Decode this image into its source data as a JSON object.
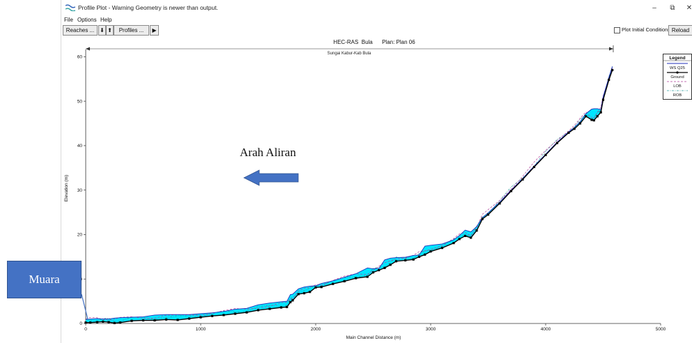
{
  "window": {
    "title": "Profile Plot - Warning Geometry is newer than output.",
    "minimize": "–",
    "maximize": "⧉",
    "close": "✕"
  },
  "menu": [
    "File",
    "Options",
    "Help"
  ],
  "toolbar": {
    "reaches": "Reaches ...",
    "down_arrow": "⬇",
    "up_arrow": "⬆",
    "profiles": "Profiles ...",
    "play": "▶",
    "plot_initial_conditions": "Plot Initial Conditions",
    "plot_initial_conditions_checked": false,
    "reload_data": "Reload Da"
  },
  "overlays": {
    "flow_direction": "Arah Aliran",
    "muara": "Muara"
  },
  "colors": {
    "water_fill": "#00e5ff",
    "ws_line": "#1f2fb8",
    "ground": "#000000",
    "lob": "#b0409a",
    "rob": "#2a9f9f",
    "callout": "#4472c4",
    "arrow": "#4472c4"
  },
  "chart_data": {
    "type": "line",
    "title": "HEC-RAS  Bula      Plan: Plan 06",
    "reach_label": "Sungai Kabur-Kab Bula",
    "xlabel": "Main Channel Distance (m)",
    "ylabel": "Elevation (m)",
    "xlim": [
      0,
      5000
    ],
    "ylim": [
      0,
      61
    ],
    "xticks": [
      0,
      1000,
      2000,
      3000,
      4000,
      5000
    ],
    "yticks": [
      0,
      10,
      20,
      30,
      40,
      50,
      60
    ],
    "legend": {
      "title": "Legend",
      "placement": "right",
      "entries": [
        "WS  Q25",
        "Ground",
        "LOB",
        "ROB"
      ]
    },
    "series": [
      {
        "name": "Ground",
        "x": [
          0,
          40,
          100,
          150,
          200,
          250,
          300,
          400,
          500,
          600,
          700,
          800,
          900,
          1000,
          1100,
          1200,
          1300,
          1400,
          1500,
          1600,
          1700,
          1750,
          1780,
          1800,
          1850,
          1900,
          1950,
          2000,
          2050,
          2150,
          2250,
          2350,
          2450,
          2500,
          2550,
          2600,
          2650,
          2700,
          2780,
          2850,
          2900,
          2950,
          3000,
          3100,
          3200,
          3250,
          3300,
          3350,
          3400,
          3450,
          3500,
          3600,
          3700,
          3800,
          3900,
          4000,
          4100,
          4200,
          4250,
          4300,
          4350,
          4400,
          4420,
          4450,
          4480,
          4500,
          4550,
          4580
        ],
        "y": [
          0.2,
          0.2,
          0.3,
          0.4,
          0.3,
          0.1,
          0.2,
          0.6,
          0.7,
          0.7,
          0.9,
          0.8,
          1.1,
          1.4,
          1.7,
          1.9,
          2.2,
          2.5,
          3.0,
          3.3,
          3.6,
          3.7,
          4.8,
          5.2,
          6.6,
          6.8,
          7.1,
          8.1,
          8.2,
          8.9,
          9.5,
          10.2,
          10.5,
          11.5,
          12.0,
          12.5,
          13.2,
          14.0,
          14.2,
          14.4,
          15.0,
          15.5,
          16.2,
          17.0,
          18.1,
          19.0,
          19.7,
          19.3,
          20.9,
          23.5,
          24.5,
          27.0,
          29.8,
          32.4,
          35.2,
          37.9,
          40.6,
          42.9,
          43.8,
          45.0,
          46.6,
          45.8,
          45.7,
          46.6,
          47.5,
          50.3,
          54.8,
          57.0
        ]
      },
      {
        "name": "WS  Q25",
        "x": [
          0,
          40,
          100,
          150,
          200,
          250,
          300,
          400,
          500,
          600,
          700,
          800,
          900,
          1000,
          1100,
          1200,
          1300,
          1400,
          1500,
          1600,
          1700,
          1750,
          1780,
          1800,
          1850,
          1900,
          1950,
          2000,
          2050,
          2150,
          2250,
          2350,
          2450,
          2500,
          2550,
          2600,
          2650,
          2700,
          2780,
          2850,
          2900,
          2950,
          3000,
          3100,
          3200,
          3250,
          3300,
          3350,
          3400,
          3450,
          3500,
          3600,
          3700,
          3800,
          3900,
          4000,
          4100,
          4200,
          4250,
          4300,
          4350,
          4400,
          4420,
          4450,
          4480,
          4500,
          4550,
          4580
        ],
        "y": [
          0.9,
          1.0,
          1.1,
          1.0,
          1.0,
          1.2,
          1.3,
          1.4,
          1.5,
          1.9,
          2.0,
          2.0,
          2.0,
          2.2,
          2.4,
          2.7,
          3.2,
          3.4,
          4.2,
          4.6,
          4.9,
          5.0,
          6.5,
          6.6,
          7.8,
          8.2,
          8.4,
          8.5,
          9.0,
          9.6,
          10.4,
          11.2,
          12.5,
          12.3,
          12.4,
          14.3,
          14.7,
          14.8,
          14.9,
          15.3,
          15.4,
          17.4,
          17.6,
          17.9,
          18.8,
          19.8,
          21.0,
          20.6,
          21.8,
          23.8,
          24.9,
          27.3,
          30.0,
          32.6,
          35.4,
          38.1,
          40.8,
          43.1,
          44.1,
          45.4,
          47.2,
          48.2,
          48.3,
          48.3,
          48.1,
          51.0,
          55.4,
          57.8
        ]
      }
    ]
  }
}
